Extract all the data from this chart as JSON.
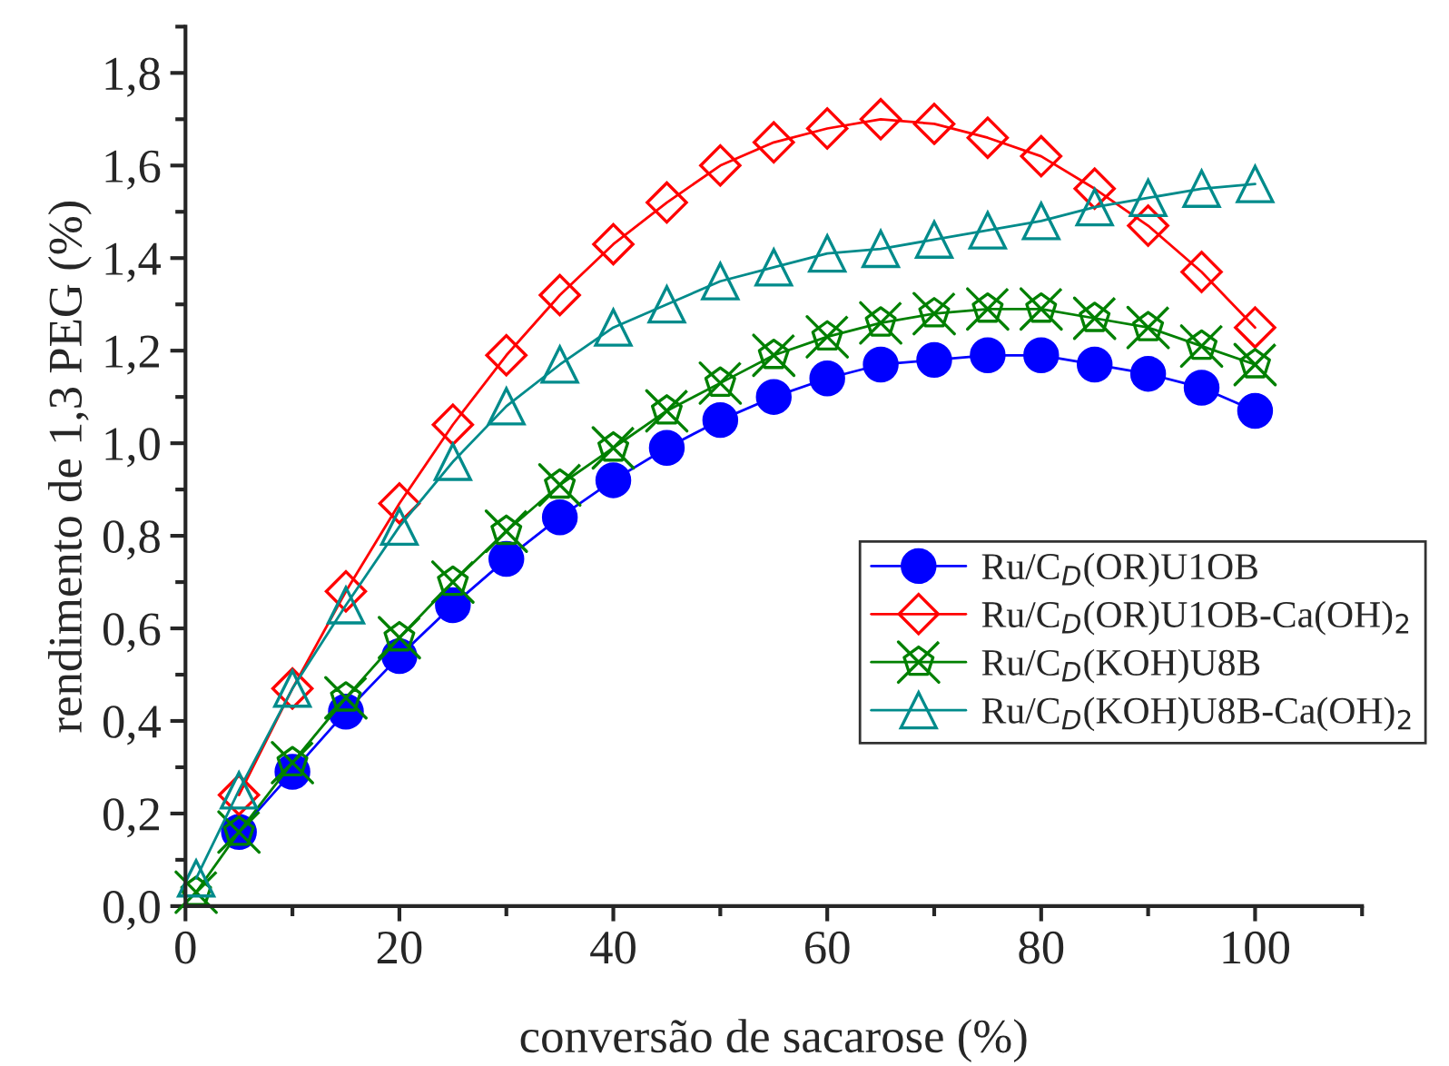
{
  "chart_data": {
    "type": "line",
    "xlabel": "conversão de sacarose (%)",
    "ylabel": "rendimento de 1,3 PEG (%)",
    "x": [
      1,
      5,
      10,
      15,
      20,
      25,
      30,
      35,
      40,
      45,
      50,
      55,
      60,
      65,
      70,
      75,
      80,
      85,
      90,
      95,
      100
    ],
    "series": [
      {
        "name": "Ru/C$_{D}$(OR)U1OB",
        "color": "#0000ff",
        "marker": "circle",
        "values": [
          null,
          0.16,
          0.29,
          0.42,
          0.54,
          0.65,
          0.75,
          0.84,
          0.92,
          0.99,
          1.05,
          1.1,
          1.14,
          1.17,
          1.18,
          1.19,
          1.19,
          1.17,
          1.15,
          1.12,
          1.07
        ]
      },
      {
        "name": "Ru/C$_{D}$(OR)U1OB-Ca(OH)$_{2}$",
        "color": "#ff0000",
        "marker": "diamond",
        "values": [
          null,
          0.24,
          0.47,
          0.68,
          0.87,
          1.04,
          1.19,
          1.32,
          1.43,
          1.52,
          1.6,
          1.65,
          1.68,
          1.7,
          1.69,
          1.66,
          1.62,
          1.55,
          1.47,
          1.37,
          1.25
        ]
      },
      {
        "name": "Ru/C$_{D}$(KOH)U8B",
        "color": "#008000",
        "marker": "cross",
        "values": [
          0.03,
          0.16,
          0.31,
          0.45,
          0.58,
          0.7,
          0.81,
          0.91,
          0.99,
          1.07,
          1.13,
          1.19,
          1.23,
          1.26,
          1.28,
          1.29,
          1.29,
          1.27,
          1.25,
          1.21,
          1.17
        ]
      },
      {
        "name": "Ru/C$_{D}$(KOH)U8B-Ca(OH)$_{2}$",
        "color": "#008b8b",
        "marker": "triangle",
        "values": [
          0.06,
          0.25,
          0.47,
          0.65,
          0.82,
          0.96,
          1.08,
          1.17,
          1.25,
          1.3,
          1.35,
          1.38,
          1.41,
          1.42,
          1.44,
          1.46,
          1.48,
          1.51,
          1.53,
          1.55,
          1.56
        ]
      }
    ],
    "xlim": [
      0,
      110
    ],
    "xticks": [
      0,
      20,
      40,
      60,
      80,
      100
    ],
    "ylim": [
      0,
      1.9
    ],
    "yticks": [
      {
        "value": 0,
        "label": "0,0"
      },
      {
        "value": 0.2,
        "label": "0,2"
      },
      {
        "value": 0.4,
        "label": "0,4"
      },
      {
        "value": 0.6,
        "label": "0,6"
      },
      {
        "value": 0.8,
        "label": "0,8"
      },
      {
        "value": 1.0,
        "label": "1,0"
      },
      {
        "value": 1.2,
        "label": "1,2"
      },
      {
        "value": 1.4,
        "label": "1,4"
      },
      {
        "value": 1.6,
        "label": "1,6"
      },
      {
        "value": 1.8,
        "label": "1,8"
      }
    ],
    "grid": false,
    "legend": "right",
    "line_style": "solid"
  }
}
